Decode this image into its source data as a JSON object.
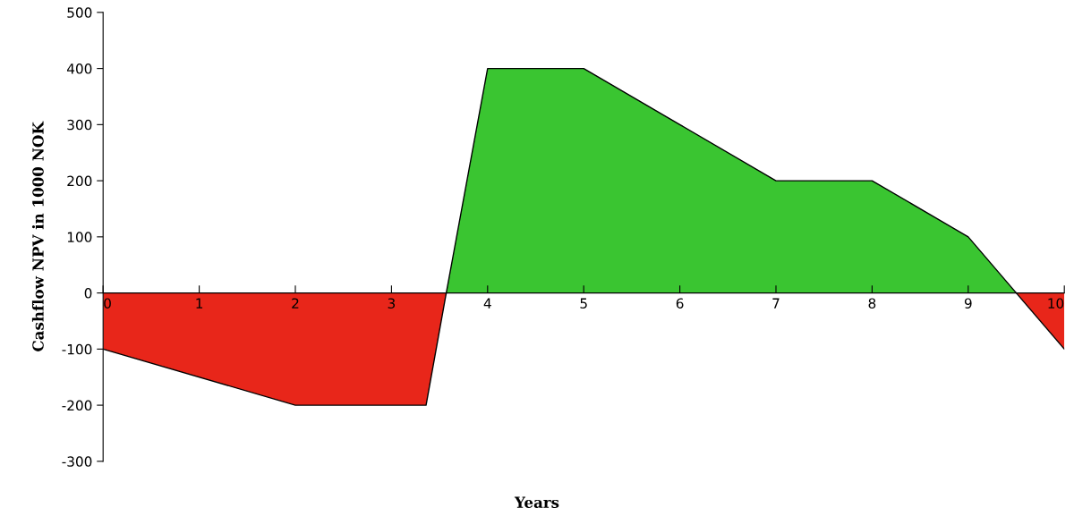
{
  "chart_data": {
    "type": "area",
    "xlabel": "Years",
    "ylabel": "Cashflow NPV in 1000 NOK",
    "series": [
      {
        "x": [
          0,
          2,
          3.36,
          3.57
        ],
        "values": [
          -100,
          -200,
          -200,
          0
        ],
        "color": "#e8261a"
      },
      {
        "x": [
          3.57,
          4,
          5,
          6,
          7,
          8,
          9,
          9.5
        ],
        "values": [
          0,
          400,
          400,
          300,
          200,
          200,
          100,
          0
        ],
        "color": "#3ac531"
      },
      {
        "x": [
          9.5,
          10
        ],
        "values": [
          0,
          -100
        ],
        "color": "#e8261a"
      }
    ],
    "xlim": [
      0,
      10
    ],
    "xticks": [
      0,
      1,
      2,
      3,
      4,
      5,
      6,
      7,
      8,
      9,
      10
    ],
    "ylim": [
      -300,
      500
    ],
    "yticks": [
      -300,
      -200,
      -100,
      0,
      100,
      200,
      300,
      400,
      500
    ],
    "grid": false,
    "legend": false
  }
}
